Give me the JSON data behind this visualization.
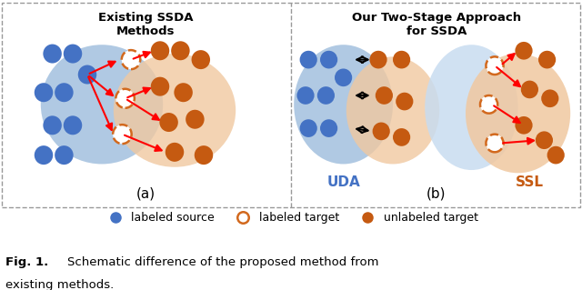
{
  "fig_width": 6.4,
  "fig_height": 3.19,
  "dpi": 100,
  "background_color": "#ffffff",
  "border_color": "#aaaaaa",
  "title_a": "Existing SSDA\nMethods",
  "title_b": "Our Two-Stage Approach\nfor SSDA",
  "label_a": "(a)",
  "label_b": "(b)",
  "blue_color": "#4472C4",
  "orange_color": "#C55A11",
  "dashed_circle_color": "#D2691E",
  "blue_ellipse_fill": "#A8C4E0",
  "orange_ellipse_fill": "#F0C8A0",
  "light_blue_fill": "#C8DCF0",
  "legend_text": [
    "labeled source",
    "labeled target",
    "unlabeled target"
  ],
  "uda_label": "UDA",
  "ssl_label": "SSL",
  "uda_color": "#4472C4",
  "ssl_color": "#C55A11"
}
